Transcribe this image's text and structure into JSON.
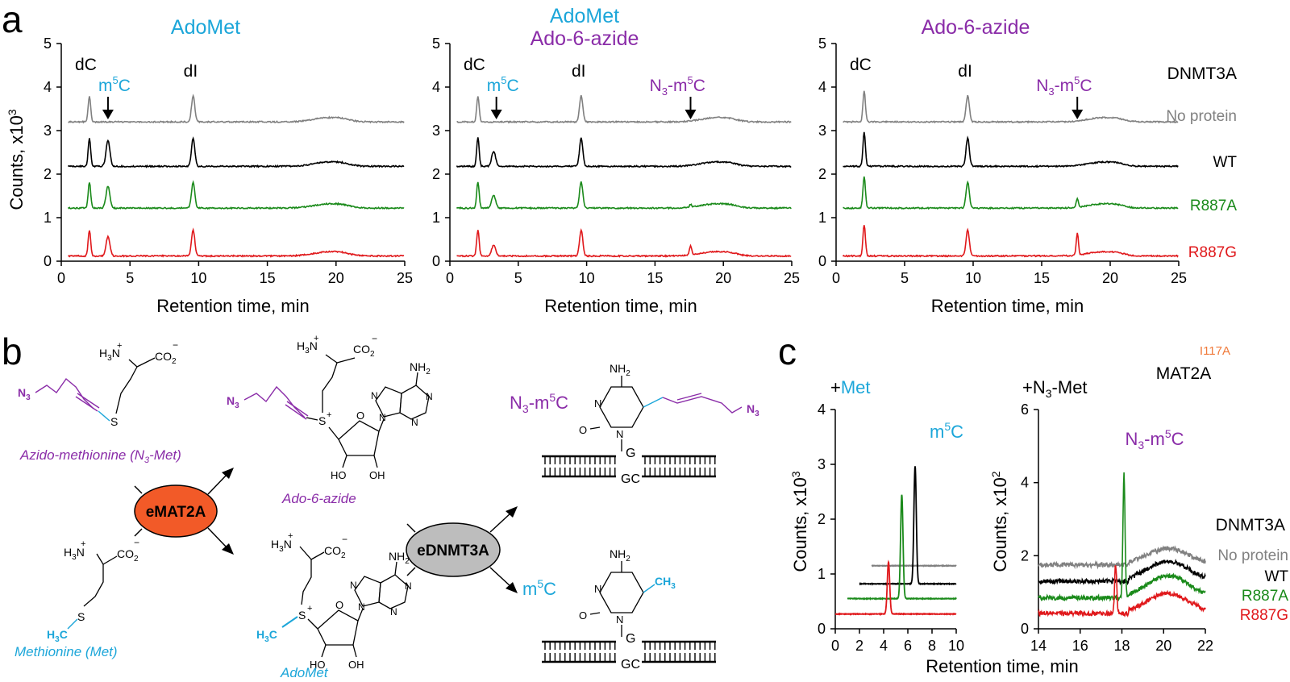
{
  "panel_letters": {
    "a": "a",
    "b": "b",
    "c": "c"
  },
  "colors": {
    "cyan": "#1ca6d9",
    "purple": "#8a2ca8",
    "gray": "#808080",
    "black": "#000000",
    "green": "#1a8a1a",
    "red": "#e0181b",
    "orange": "#f07a3a",
    "emat_fill": "#f25a28",
    "ednmt_fill": "#bdbdbd"
  },
  "panel_a": {
    "xlabel": "Retention time, min",
    "ylabel": "Counts, x10",
    "ylabel_sup": "3",
    "xticks": [
      "0",
      "5",
      "10",
      "15",
      "20",
      "25"
    ],
    "yticks": [
      "0",
      "1",
      "2",
      "3",
      "4",
      "5"
    ],
    "legend_header": "DNMT3A",
    "legend": [
      "No protein",
      "WT",
      "R887A",
      "R887G"
    ],
    "peak_labels": {
      "dC": "dC",
      "dI": "dI",
      "m": "m",
      "five": "5",
      "C": "C",
      "N": "N",
      "three": "3",
      "dash": "-m"
    },
    "titles": {
      "one": "AdoMet",
      "two_line1": "AdoMet",
      "two_line2": "Ado-6-azide",
      "three": "Ado-6-azide"
    }
  },
  "panel_b": {
    "azido_met": "Azido-methionine (N",
    "azido_met_sub": "3",
    "azido_met_end": "-Met)",
    "methionine": "Methionine (Met)",
    "ado6azide": "Ado-6-azide",
    "adomet": "AdoMet",
    "emat2a": "eMAT2A",
    "ednmt3a": "eDNMT3A",
    "n3m5c": {
      "N": "N",
      "three": "3",
      "m": "-m",
      "five": "5",
      "C": "C"
    },
    "m5c": {
      "m": "m",
      "five": "5",
      "C": "C"
    },
    "atoms": {
      "N3": "N",
      "sub3": "3",
      "H3N": "H",
      "h3sub": "3",
      "Nplus": "N",
      "plus": "+",
      "CO2": "CO",
      "co2sub": "2",
      "minus": "−",
      "S": "S",
      "NH2": "NH",
      "nh2sub": "2",
      "N": "N",
      "O": "O",
      "HO": "HO",
      "OH": "OH",
      "H3C": "H",
      "h3csub": "3",
      "C": "C",
      "CH3": "CH",
      "ch3sub": "3",
      "G": "G",
      "GC": "GC"
    }
  },
  "panel_c": {
    "xlabel": "Retention time, min",
    "left_title_plus": "+",
    "left_title": "Met",
    "right_title_plus": "+N",
    "right_title_sub": "3",
    "right_title_end": "-Met",
    "left_ylabel": "Counts, x10",
    "left_ylabel_sup": "3",
    "right_ylabel": "Counts, x10",
    "right_ylabel_sup": "2",
    "left_xticks": [
      "0",
      "2",
      "4",
      "6",
      "8",
      "10"
    ],
    "left_yticks": [
      "0",
      "1",
      "2",
      "3",
      "4"
    ],
    "right_xticks": [
      "14",
      "16",
      "18",
      "20",
      "22"
    ],
    "right_yticks": [
      "0",
      "2",
      "4",
      "6"
    ],
    "left_peak": {
      "m": "m",
      "five": "5",
      "C": "C"
    },
    "right_peak": {
      "N": "N",
      "three": "3",
      "m": "-m",
      "five": "5",
      "C": "C"
    },
    "mutant_label": "I117A",
    "mat_label": "MAT2A",
    "dnmt_label": "DNMT3A",
    "legend": [
      "No protein",
      "WT",
      "R887A",
      "R887G"
    ]
  }
}
